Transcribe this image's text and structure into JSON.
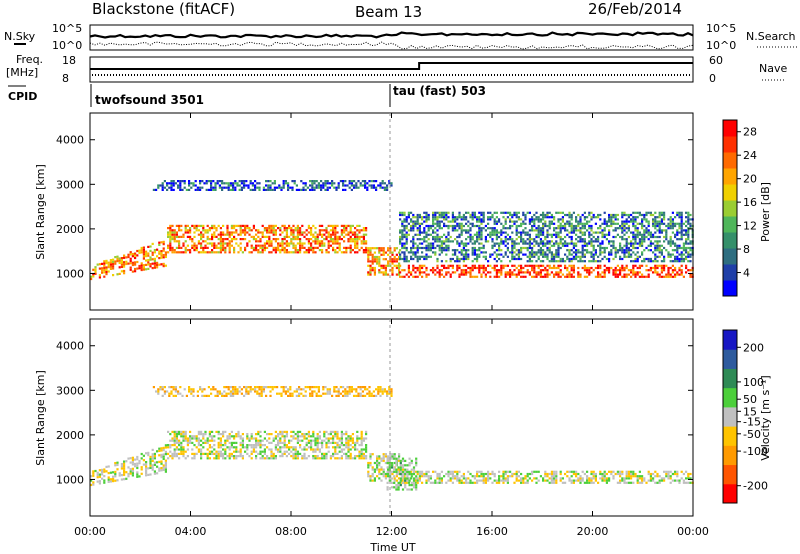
{
  "header": {
    "station": "Blackstone (fitACF)",
    "beam": "Beam 13",
    "date": "26/Feb/2014"
  },
  "status_panel": {
    "left_label": "N.Sky",
    "left_ticks": [
      "10^5",
      "10^0"
    ],
    "right_label": "N.Search",
    "right_ticks": [
      "10^5",
      "10^0"
    ]
  },
  "freq_panel": {
    "left_label_1": "Freq.",
    "left_label_2": "[MHz]",
    "left_ticks": [
      "18",
      "8"
    ],
    "right_label": "Nave",
    "right_ticks": [
      "60",
      "0"
    ]
  },
  "cpid": {
    "label": "CPID",
    "modes": [
      {
        "name": "twofsound 3501",
        "start_hour": 0
      },
      {
        "name": "tau (fast) 503",
        "start_hour": 12
      }
    ]
  },
  "axes": {
    "xlabel": "Time UT",
    "x_ticks": [
      "00:00",
      "04:00",
      "08:00",
      "12:00",
      "16:00",
      "20:00",
      "00:00"
    ],
    "y_ticks": [
      "1000",
      "2000",
      "3000",
      "4000"
    ],
    "ylabel": "Slant Range [km]",
    "xlim_hours": [
      0,
      24
    ],
    "ylim_km": [
      180,
      4600
    ]
  },
  "chart_data": [
    {
      "type": "heatmap",
      "parameter": "Power",
      "colorbar_label": "Power [dB]",
      "colorbar_ticks": [
        "28",
        "24",
        "20",
        "16",
        "12",
        "8",
        "4"
      ],
      "colorbar_range": [
        0,
        30
      ],
      "colors": [
        "#0000ff",
        "#1f3fa8",
        "#2e6e80",
        "#35906a",
        "#4fb65a",
        "#9acd32",
        "#f0d000",
        "#ffa500",
        "#ff6a00",
        "#ff3000",
        "#ff0000"
      ],
      "regions": [
        {
          "name": "main-echo-band",
          "start_hour": 0,
          "end_hour": 12.3,
          "range_km": [
            900,
            2200
          ],
          "typical_value": 22
        },
        {
          "name": "low-echo-band",
          "start_hour": 12.3,
          "end_hour": 24,
          "range_km": [
            950,
            1200
          ],
          "typical_value": 26
        },
        {
          "name": "far-scatter",
          "start_hour": 2.5,
          "end_hour": 12,
          "range_km": [
            2900,
            3100
          ],
          "typical_value": 5
        },
        {
          "name": "late-scatter",
          "start_hour": 12.3,
          "end_hour": 24,
          "range_km": [
            1300,
            2400
          ],
          "typical_value": 8
        }
      ]
    },
    {
      "type": "heatmap",
      "parameter": "Velocity",
      "colorbar_label": "Velocity [m s⁻¹]",
      "colorbar_ticks": [
        "200",
        "100",
        "50",
        "15",
        "-15",
        "-50",
        "-100",
        "-200"
      ],
      "colorbar_range": [
        -250,
        250
      ],
      "colors": [
        "#ff0000",
        "#ff5500",
        "#ff9a00",
        "#ffc400",
        "#c0c0c0",
        "#4ccf3a",
        "#2e8a55",
        "#2e5b9e",
        "#1717c4"
      ],
      "regions": [
        {
          "name": "ground-scatter-band",
          "start_hour": 0,
          "end_hour": 12.3,
          "range_km": [
            900,
            2200
          ],
          "typical_value": 0
        },
        {
          "name": "low-ground-scatter",
          "start_hour": 12.3,
          "end_hour": 24,
          "range_km": [
            950,
            1200
          ],
          "typical_value": 0
        },
        {
          "name": "transition-flow",
          "start_hour": 11.8,
          "end_hour": 13,
          "range_km": [
            800,
            1500
          ],
          "typical_value": 30
        },
        {
          "name": "far-scatter",
          "start_hour": 2.5,
          "end_hour": 12,
          "range_km": [
            2900,
            3100
          ],
          "typical_value": -60
        }
      ]
    }
  ]
}
